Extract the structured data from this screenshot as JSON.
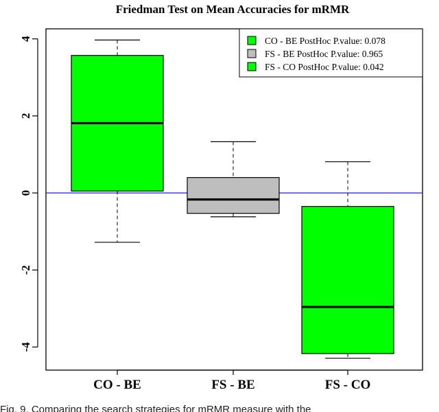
{
  "chart_data": {
    "type": "box",
    "title": "Friedman Test on Mean Accuracies for mRMR",
    "xlabel": "",
    "ylabel": "",
    "ylim": [
      -4.6,
      4.25
    ],
    "yticks": [
      -4,
      -2,
      0,
      2,
      4
    ],
    "ytick_labels": [
      "-4",
      "-2",
      "0",
      "2",
      "4"
    ],
    "reference_line": {
      "y": 0,
      "color": "#1a1ae6"
    },
    "grid": false,
    "legend_position": "top-right",
    "categories": [
      "CO - BE",
      "FS - BE",
      "FS - CO"
    ],
    "boxes": [
      {
        "category": "CO - BE",
        "min": -1.28,
        "q1": 0.05,
        "median": 1.81,
        "q3": 3.57,
        "max": 3.97,
        "color": "#00ff00"
      },
      {
        "category": "FS - BE",
        "min": -0.62,
        "q1": -0.53,
        "median": -0.17,
        "q3": 0.4,
        "max": 1.33,
        "color": "#bebebe"
      },
      {
        "category": "FS - CO",
        "min": -4.29,
        "q1": -4.17,
        "median": -2.96,
        "q3": -0.35,
        "max": 0.81,
        "color": "#00ff00"
      }
    ],
    "legend": [
      {
        "label": "CO - BE PostHoc P.value: 0.078",
        "color": "#00ff00"
      },
      {
        "label": "FS - BE PostHoc P.value: 0.965",
        "color": "#bebebe"
      },
      {
        "label": "FS - CO PostHoc P.value: 0.042",
        "color": "#00ff00"
      }
    ]
  },
  "caption": "Fig. 9. Comparing the search strategies for mRMR measure with the"
}
